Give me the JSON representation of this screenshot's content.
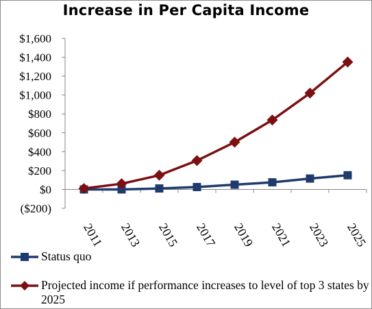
{
  "chart_data": {
    "type": "line",
    "title": "Increase in Per Capita Income",
    "categories": [
      "2011",
      "2013",
      "2015",
      "2017",
      "2019",
      "2021",
      "2023",
      "2025"
    ],
    "y_tick_labels": [
      "($200)",
      "$0",
      "$200",
      "$400",
      "$600",
      "$800",
      "$1,000",
      "$1,200",
      "$1,400",
      "$1,600"
    ],
    "ylim": [
      -200,
      1600
    ],
    "ytick_step": 200,
    "grid": false,
    "legend_position": "bottom",
    "series": [
      {
        "name": "Status quo",
        "color": "#1f3b6e",
        "marker": "square",
        "values": [
          0,
          0,
          10,
          25,
          50,
          75,
          115,
          150
        ]
      },
      {
        "name": "Projected income if performance increases to level of top 3 states by 2025",
        "color": "#7b0f12",
        "marker": "diamond",
        "values": [
          10,
          60,
          150,
          305,
          500,
          735,
          1020,
          1350
        ]
      }
    ]
  }
}
